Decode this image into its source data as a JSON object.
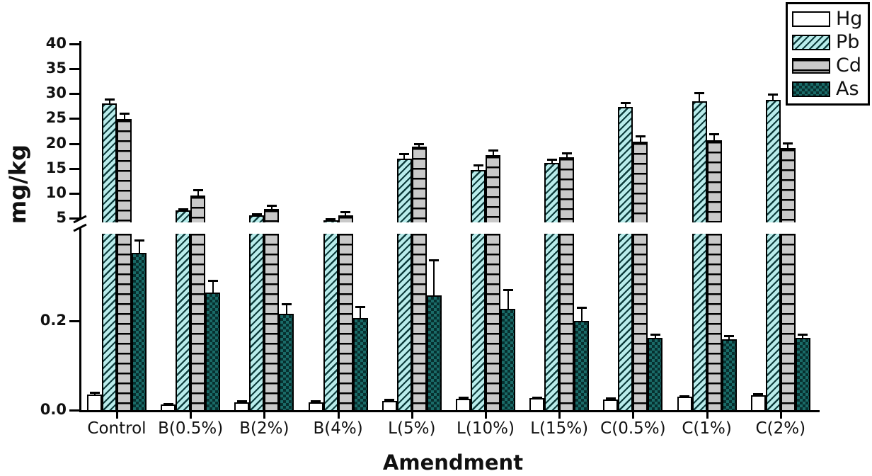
{
  "chart_data": {
    "type": "bar",
    "title": "",
    "xlabel": "Amendment",
    "ylabel": "mg/kg",
    "legend_position": "top-right",
    "grid": false,
    "error_bars": true,
    "axis_break": {
      "upper_range": [
        5,
        40
      ],
      "upper_ticks": [
        5,
        10,
        15,
        20,
        25,
        30,
        35,
        40
      ],
      "lower_range": [
        0,
        0.39
      ],
      "lower_ticks": [
        {
          "label": "0.0",
          "value": 0.0
        },
        {
          "label": "0.2",
          "value": 0.2
        }
      ]
    },
    "categories": [
      "Control",
      "B(0.5%)",
      "B(2%)",
      "B(4%)",
      "L(5%)",
      "L(10%)",
      "L(15%)",
      "C(0.5%)",
      "C(1%)",
      "C(2%)"
    ],
    "series": [
      {
        "name": "Hg",
        "pattern": "plain",
        "fill": "#ffffff",
        "values": [
          0.035,
          0.012,
          0.018,
          0.018,
          0.021,
          0.026,
          0.027,
          0.023,
          0.03,
          0.034
        ],
        "errors": [
          0.004,
          0.002,
          0.002,
          0.003,
          0.002,
          0.002,
          0.002,
          0.004,
          0.002,
          0.002
        ]
      },
      {
        "name": "Pb",
        "pattern": "diag",
        "fill": "#b9eceb",
        "values": [
          28.1,
          6.6,
          5.5,
          4.6,
          16.9,
          14.7,
          16.1,
          27.3,
          28.5,
          28.8
        ],
        "errors": [
          0.8,
          0.3,
          0.4,
          0.25,
          1.0,
          1.0,
          0.7,
          0.85,
          1.7,
          1.1
        ]
      },
      {
        "name": "Cd",
        "pattern": "hlines",
        "fill": "#c9c9c9",
        "values": [
          24.9,
          9.5,
          6.9,
          5.6,
          19.3,
          17.7,
          17.3,
          20.4,
          20.7,
          19.1
        ],
        "errors": [
          1.2,
          1.2,
          0.7,
          0.7,
          0.7,
          1.0,
          0.85,
          1.1,
          1.2,
          1.0
        ]
      },
      {
        "name": "As",
        "pattern": "checker",
        "fill": "#1a6b68",
        "values": [
          0.352,
          0.262,
          0.215,
          0.206,
          0.257,
          0.226,
          0.2,
          0.161,
          0.158,
          0.162
        ],
        "errors": [
          0.027,
          0.028,
          0.022,
          0.025,
          0.079,
          0.043,
          0.03,
          0.008,
          0.008,
          0.008
        ]
      }
    ],
    "colors": {
      "ink": "#111111",
      "pb_fill": "#b9eceb",
      "pb_hatch": "#0e3d3d",
      "cd_fill": "#c9c9c9",
      "cd_line": "#000000",
      "as_fill": "#1a6b68",
      "as_check": "#07302f",
      "hg_fill": "#ffffff"
    }
  }
}
